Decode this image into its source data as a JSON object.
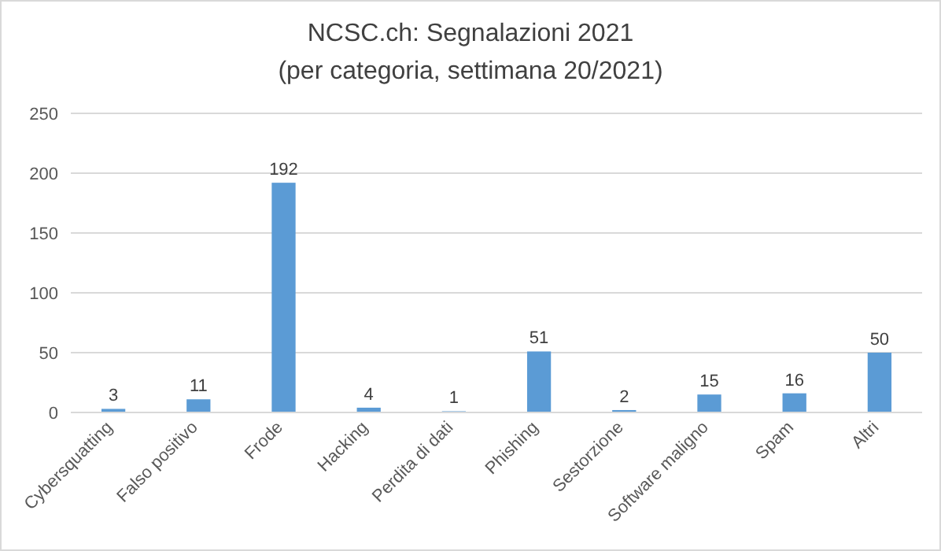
{
  "chart_data": {
    "type": "bar",
    "title": "NCSC.ch: Segnalazioni 2021",
    "subtitle": "(per categoria, settimana 20/2021)",
    "categories": [
      "Cybersquatting",
      "Falso positivo",
      "Frode",
      "Hacking",
      "Perdita di dati",
      "Phishing",
      "Sestorzione",
      "Software maligno",
      "Spam",
      "Altri"
    ],
    "values": [
      3,
      11,
      192,
      4,
      1,
      51,
      2,
      15,
      16,
      50
    ],
    "color": "#5b9bd5",
    "ylim": [
      0,
      250
    ],
    "yticks": [
      0,
      50,
      100,
      150,
      200,
      250
    ],
    "grid": "y",
    "data_labels": true
  }
}
